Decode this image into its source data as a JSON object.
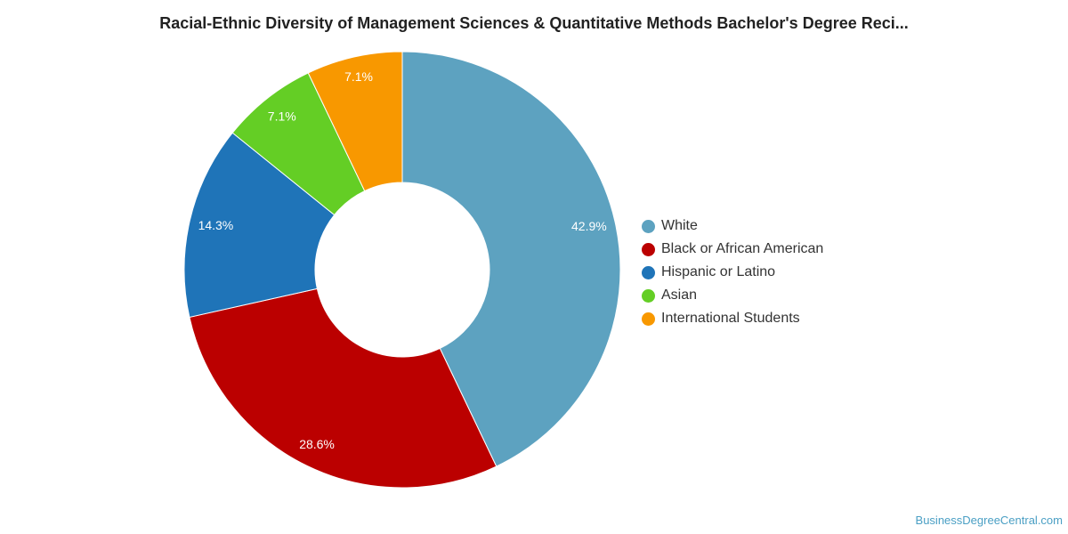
{
  "chart_data": {
    "type": "pie",
    "style": "donut",
    "title": "Racial-Ethnic Diversity of Management Sciences & Quantitative Methods Bachelor's Degree Reci...",
    "categories": [
      "White",
      "Black or African American",
      "Hispanic or Latino",
      "Asian",
      "International Students"
    ],
    "values": [
      42.9,
      28.6,
      14.3,
      7.1,
      7.1
    ],
    "labels": [
      "42.9%",
      "28.6%",
      "14.3%",
      "7.1%",
      "7.1%"
    ],
    "colors": [
      "#5da2c0",
      "#bb0000",
      "#1f74b8",
      "#64ce25",
      "#f89800"
    ],
    "legend_position": "right"
  },
  "watermark": "BusinessDegreeCentral.com"
}
